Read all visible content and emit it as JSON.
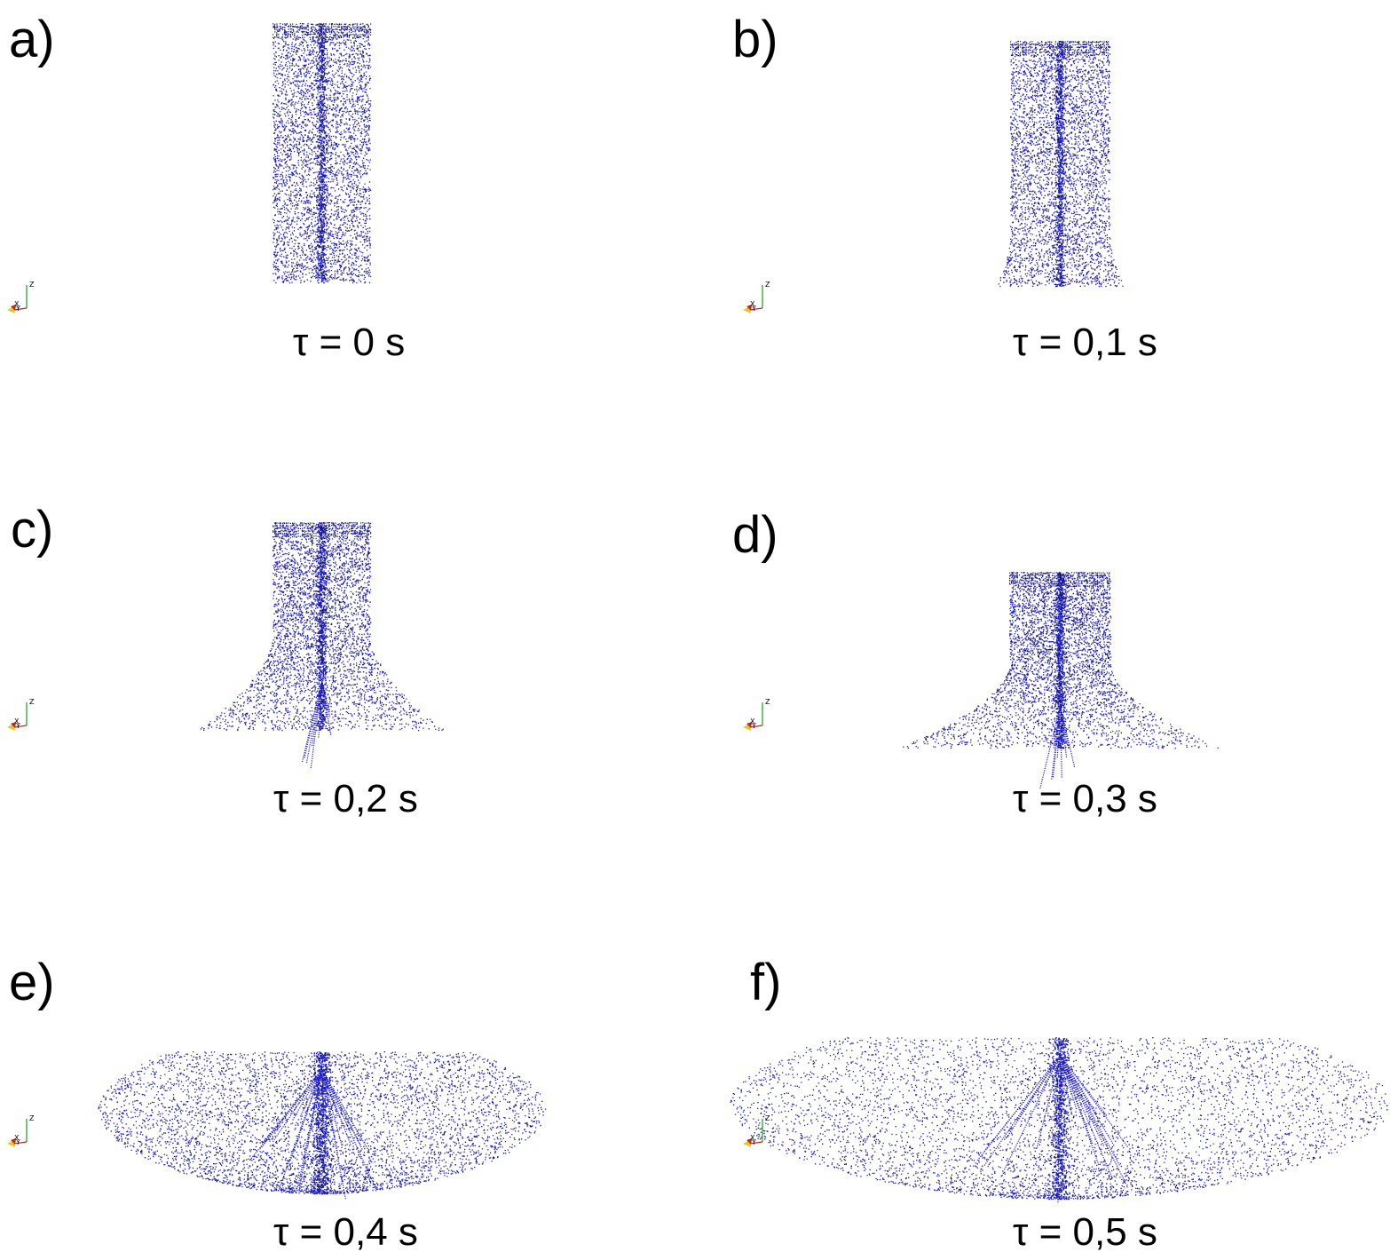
{
  "colors": {
    "particles": "#1f1fd6",
    "particles_dark": "#0f1060",
    "axis_z": "#22aa22",
    "axis_x": "#cc2222",
    "axis_y": "#ddcc22",
    "text": "#000000"
  },
  "axis_labels": {
    "x": "X",
    "y": "Y",
    "z": "Z"
  },
  "panels": [
    {
      "letter": "a)",
      "caption": "τ = 0 s",
      "stage": 0.0
    },
    {
      "letter": "b)",
      "caption": "τ = 0,1 s",
      "stage": 0.1
    },
    {
      "letter": "c)",
      "caption": "τ = 0,2 s",
      "stage": 0.2
    },
    {
      "letter": "d)",
      "caption": "τ = 0,3 s",
      "stage": 0.3
    },
    {
      "letter": "e)",
      "caption": "τ = 0,4 s",
      "stage": 0.4
    },
    {
      "letter": "f)",
      "caption": "τ = 0,5 s",
      "stage": 0.5
    }
  ]
}
